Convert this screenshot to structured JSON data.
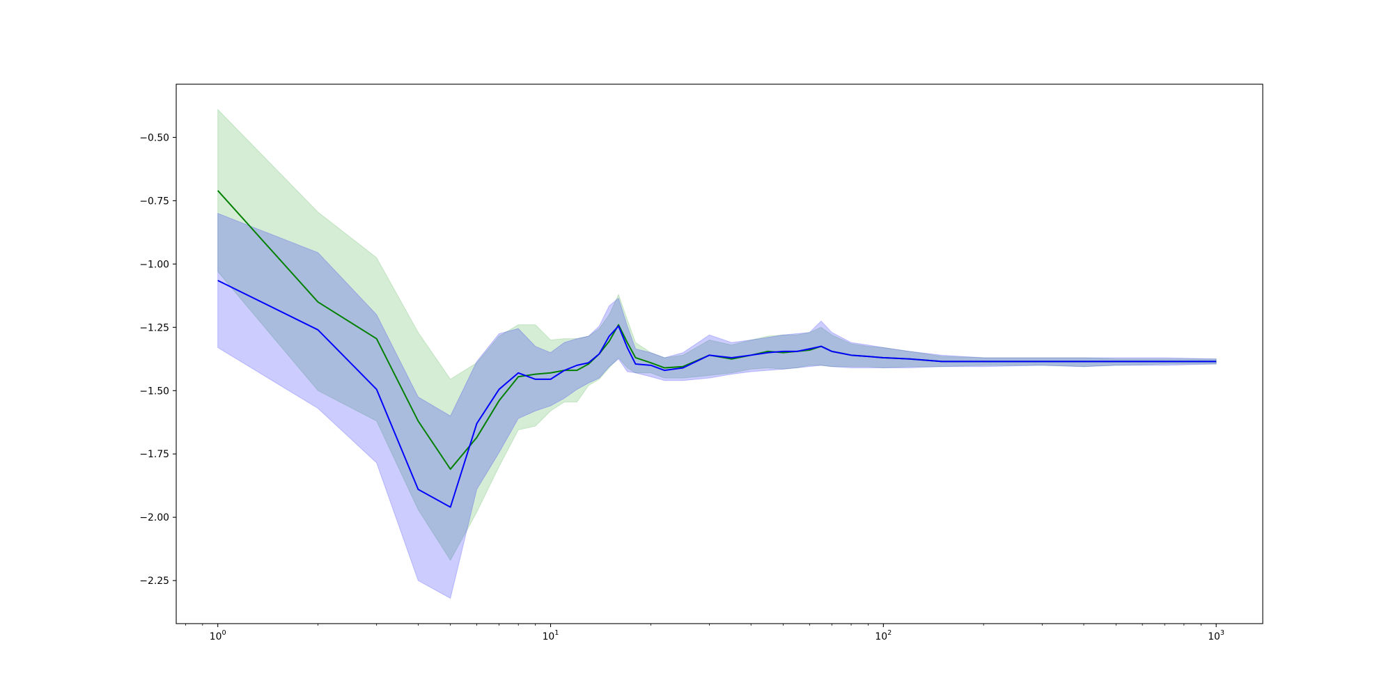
{
  "chart_data": {
    "type": "area",
    "x_scale": "log",
    "xlim": [
      0.75,
      1380
    ],
    "ylim": [
      -2.42,
      -0.29
    ],
    "y_ticks": [
      -0.5,
      -0.75,
      -1.0,
      -1.25,
      -1.5,
      -1.75,
      -2.0,
      -2.25
    ],
    "y_tick_labels": [
      "−0.50",
      "−0.75",
      "−1.00",
      "−1.25",
      "−1.50",
      "−1.75",
      "−2.00",
      "−2.25"
    ],
    "x_ticks": [
      {
        "value": 1,
        "base": "10",
        "exponent": "0"
      },
      {
        "value": 10,
        "base": "10",
        "exponent": "1"
      },
      {
        "value": 100,
        "base": "10",
        "exponent": "2"
      },
      {
        "value": 1000,
        "base": "10",
        "exponent": "3"
      }
    ],
    "grid": false,
    "legend": "none",
    "series": [
      {
        "color": "#008000",
        "band_color": "#2ca02c",
        "x": [
          1,
          2,
          3,
          4,
          5,
          6,
          7,
          8,
          9,
          10,
          11,
          12,
          13,
          14,
          15,
          16,
          17,
          18,
          20,
          22,
          25,
          30,
          35,
          40,
          45,
          50,
          55,
          60,
          65,
          70,
          80,
          90,
          100,
          120,
          150,
          200,
          300,
          400,
          500,
          700,
          1000
        ],
        "mean": [
          -0.71,
          -1.15,
          -1.295,
          -1.62,
          -1.81,
          -1.685,
          -1.54,
          -1.445,
          -1.435,
          -1.43,
          -1.42,
          -1.42,
          -1.395,
          -1.355,
          -1.305,
          -1.24,
          -1.31,
          -1.37,
          -1.39,
          -1.41,
          -1.405,
          -1.36,
          -1.375,
          -1.36,
          -1.345,
          -1.35,
          -1.345,
          -1.34,
          -1.325,
          -1.345,
          -1.36,
          -1.365,
          -1.37,
          -1.375,
          -1.385,
          -1.385,
          -1.385,
          -1.385,
          -1.385,
          -1.385,
          -1.385
        ],
        "lower": [
          -1.03,
          -1.5,
          -1.62,
          -1.97,
          -2.17,
          -1.98,
          -1.8,
          -1.655,
          -1.64,
          -1.58,
          -1.545,
          -1.545,
          -1.48,
          -1.455,
          -1.41,
          -1.37,
          -1.41,
          -1.43,
          -1.43,
          -1.45,
          -1.45,
          -1.44,
          -1.43,
          -1.415,
          -1.41,
          -1.415,
          -1.41,
          -1.4,
          -1.4,
          -1.405,
          -1.405,
          -1.405,
          -1.41,
          -1.405,
          -1.405,
          -1.4,
          -1.4,
          -1.405,
          -1.4,
          -1.395,
          -1.395
        ],
        "upper": [
          -0.39,
          -0.795,
          -0.975,
          -1.27,
          -1.455,
          -1.39,
          -1.285,
          -1.24,
          -1.24,
          -1.3,
          -1.295,
          -1.295,
          -1.285,
          -1.255,
          -1.2,
          -1.12,
          -1.22,
          -1.31,
          -1.35,
          -1.37,
          -1.36,
          -1.3,
          -1.32,
          -1.3,
          -1.285,
          -1.28,
          -1.28,
          -1.27,
          -1.25,
          -1.28,
          -1.315,
          -1.325,
          -1.33,
          -1.345,
          -1.365,
          -1.37,
          -1.37,
          -1.37,
          -1.375,
          -1.375,
          -1.375
        ]
      },
      {
        "color": "#0000ff",
        "band_color": "#0000ff",
        "x": [
          1,
          2,
          3,
          4,
          5,
          6,
          7,
          8,
          9,
          10,
          11,
          12,
          13,
          14,
          15,
          16,
          17,
          18,
          20,
          22,
          25,
          30,
          35,
          40,
          45,
          50,
          55,
          60,
          65,
          70,
          80,
          90,
          100,
          120,
          150,
          200,
          300,
          400,
          500,
          700,
          1000
        ],
        "mean": [
          -1.065,
          -1.26,
          -1.495,
          -1.89,
          -1.96,
          -1.63,
          -1.495,
          -1.43,
          -1.455,
          -1.455,
          -1.42,
          -1.4,
          -1.39,
          -1.355,
          -1.285,
          -1.245,
          -1.33,
          -1.395,
          -1.4,
          -1.42,
          -1.41,
          -1.36,
          -1.37,
          -1.36,
          -1.35,
          -1.345,
          -1.345,
          -1.335,
          -1.325,
          -1.345,
          -1.36,
          -1.365,
          -1.37,
          -1.375,
          -1.385,
          -1.385,
          -1.385,
          -1.385,
          -1.385,
          -1.385,
          -1.385
        ],
        "lower": [
          -1.33,
          -1.57,
          -1.785,
          -2.25,
          -2.32,
          -1.89,
          -1.745,
          -1.61,
          -1.58,
          -1.56,
          -1.53,
          -1.495,
          -1.47,
          -1.45,
          -1.405,
          -1.375,
          -1.425,
          -1.43,
          -1.445,
          -1.46,
          -1.46,
          -1.45,
          -1.435,
          -1.425,
          -1.42,
          -1.415,
          -1.41,
          -1.405,
          -1.4,
          -1.405,
          -1.41,
          -1.41,
          -1.41,
          -1.41,
          -1.405,
          -1.405,
          -1.4,
          -1.405,
          -1.4,
          -1.4,
          -1.395
        ],
        "upper": [
          -0.8,
          -0.955,
          -1.2,
          -1.525,
          -1.6,
          -1.385,
          -1.275,
          -1.255,
          -1.325,
          -1.35,
          -1.31,
          -1.295,
          -1.285,
          -1.245,
          -1.165,
          -1.135,
          -1.245,
          -1.335,
          -1.35,
          -1.37,
          -1.35,
          -1.28,
          -1.31,
          -1.3,
          -1.29,
          -1.28,
          -1.275,
          -1.27,
          -1.225,
          -1.27,
          -1.31,
          -1.32,
          -1.33,
          -1.345,
          -1.36,
          -1.37,
          -1.37,
          -1.37,
          -1.37,
          -1.37,
          -1.375
        ]
      }
    ]
  }
}
